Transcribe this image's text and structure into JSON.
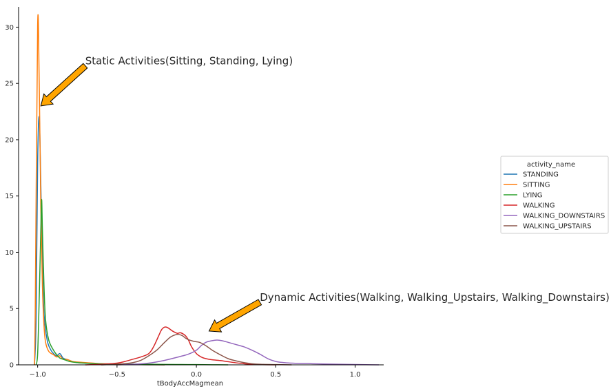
{
  "chart_data": {
    "type": "line",
    "xlabel": "tBodyAccMagmean",
    "ylabel": "",
    "xlim": [
      -1.12,
      1.18
    ],
    "ylim": [
      0,
      31.8
    ],
    "xticks": [
      -1.0,
      -0.5,
      0.0,
      0.5,
      1.0
    ],
    "xtick_labels": [
      "−1.0",
      "−0.5",
      "0.0",
      "0.5",
      "1.0"
    ],
    "yticks": [
      0,
      5,
      10,
      15,
      20,
      25,
      30
    ],
    "ytick_labels": [
      "0",
      "5",
      "10",
      "15",
      "20",
      "25",
      "30"
    ],
    "grid": false,
    "legend": {
      "title": "activity_name",
      "placement": "center-right"
    },
    "series": [
      {
        "name": "STANDING",
        "color": "#1f77b4",
        "points": [
          [
            -1.02,
            0
          ],
          [
            -1.01,
            4
          ],
          [
            -1.0,
            18
          ],
          [
            -0.99,
            22
          ],
          [
            -0.98,
            16
          ],
          [
            -0.97,
            9
          ],
          [
            -0.96,
            4.5
          ],
          [
            -0.94,
            2.2
          ],
          [
            -0.92,
            1.4
          ],
          [
            -0.9,
            1.0
          ],
          [
            -0.88,
            0.8
          ],
          [
            -0.86,
            1.0
          ],
          [
            -0.84,
            0.6
          ],
          [
            -0.82,
            0.5
          ],
          [
            -0.8,
            0.4
          ],
          [
            -0.78,
            0.3
          ],
          [
            -0.75,
            0.2
          ],
          [
            -0.7,
            0.15
          ],
          [
            -0.65,
            0.12
          ],
          [
            -0.6,
            0.08
          ],
          [
            -0.5,
            0.04
          ],
          [
            -0.4,
            0.02
          ],
          [
            -0.3,
            0.01
          ],
          [
            -0.2,
            0
          ]
        ]
      },
      {
        "name": "SITTING",
        "color": "#ff7f0e",
        "points": [
          [
            -1.02,
            0
          ],
          [
            -1.015,
            5
          ],
          [
            -1.0,
            30.1
          ],
          [
            -0.99,
            25
          ],
          [
            -0.98,
            14
          ],
          [
            -0.97,
            7
          ],
          [
            -0.96,
            3.5
          ],
          [
            -0.95,
            2.0
          ],
          [
            -0.93,
            1.2
          ],
          [
            -0.9,
            0.9
          ],
          [
            -0.88,
            0.7
          ],
          [
            -0.86,
            0.8
          ],
          [
            -0.84,
            0.5
          ],
          [
            -0.82,
            0.5
          ],
          [
            -0.8,
            0.4
          ],
          [
            -0.78,
            0.3
          ],
          [
            -0.75,
            0.25
          ],
          [
            -0.7,
            0.2
          ],
          [
            -0.65,
            0.15
          ],
          [
            -0.6,
            0.1
          ],
          [
            -0.55,
            0.08
          ],
          [
            -0.5,
            0.05
          ],
          [
            -0.4,
            0.02
          ],
          [
            -0.3,
            0.01
          ],
          [
            -0.2,
            0
          ]
        ]
      },
      {
        "name": "LYING",
        "color": "#2ca02c",
        "points": [
          [
            -1.01,
            0
          ],
          [
            -1.0,
            1
          ],
          [
            -0.99,
            6
          ],
          [
            -0.98,
            12
          ],
          [
            -0.975,
            14.7
          ],
          [
            -0.97,
            12
          ],
          [
            -0.96,
            7
          ],
          [
            -0.95,
            4
          ],
          [
            -0.93,
            2.2
          ],
          [
            -0.9,
            1.3
          ],
          [
            -0.88,
            0.9
          ],
          [
            -0.86,
            0.6
          ],
          [
            -0.84,
            0.5
          ],
          [
            -0.82,
            0.4
          ],
          [
            -0.8,
            0.3
          ],
          [
            -0.75,
            0.2
          ],
          [
            -0.7,
            0.15
          ],
          [
            -0.6,
            0.1
          ],
          [
            -0.5,
            0.08
          ],
          [
            -0.4,
            0.06
          ],
          [
            -0.3,
            0.05
          ],
          [
            -0.2,
            0.04
          ],
          [
            -0.1,
            0.03
          ],
          [
            0.0,
            0.02
          ],
          [
            0.1,
            0.01
          ],
          [
            0.2,
            0
          ]
        ]
      },
      {
        "name": "WALKING",
        "color": "#d62728",
        "points": [
          [
            -0.7,
            0
          ],
          [
            -0.6,
            0.05
          ],
          [
            -0.5,
            0.15
          ],
          [
            -0.45,
            0.3
          ],
          [
            -0.4,
            0.5
          ],
          [
            -0.35,
            0.7
          ],
          [
            -0.3,
            1.0
          ],
          [
            -0.27,
            1.6
          ],
          [
            -0.24,
            2.5
          ],
          [
            -0.22,
            3.1
          ],
          [
            -0.2,
            3.35
          ],
          [
            -0.18,
            3.3
          ],
          [
            -0.15,
            3.0
          ],
          [
            -0.12,
            2.8
          ],
          [
            -0.1,
            2.85
          ],
          [
            -0.07,
            2.6
          ],
          [
            -0.05,
            2.2
          ],
          [
            -0.03,
            1.6
          ],
          [
            0.0,
            1.0
          ],
          [
            0.03,
            0.7
          ],
          [
            0.06,
            0.55
          ],
          [
            0.1,
            0.45
          ],
          [
            0.15,
            0.38
          ],
          [
            0.2,
            0.28
          ],
          [
            0.25,
            0.18
          ],
          [
            0.3,
            0.1
          ],
          [
            0.35,
            0.05
          ],
          [
            0.4,
            0.02
          ],
          [
            0.5,
            0
          ]
        ]
      },
      {
        "name": "WALKING_DOWNSTAIRS",
        "color": "#9467bd",
        "points": [
          [
            -0.5,
            0
          ],
          [
            -0.4,
            0.05
          ],
          [
            -0.3,
            0.15
          ],
          [
            -0.2,
            0.4
          ],
          [
            -0.1,
            0.75
          ],
          [
            -0.05,
            0.95
          ],
          [
            0.0,
            1.3
          ],
          [
            0.03,
            1.7
          ],
          [
            0.06,
            2.0
          ],
          [
            0.1,
            2.15
          ],
          [
            0.13,
            2.2
          ],
          [
            0.16,
            2.15
          ],
          [
            0.2,
            2.0
          ],
          [
            0.25,
            1.8
          ],
          [
            0.3,
            1.6
          ],
          [
            0.35,
            1.3
          ],
          [
            0.4,
            0.95
          ],
          [
            0.45,
            0.55
          ],
          [
            0.5,
            0.3
          ],
          [
            0.55,
            0.2
          ],
          [
            0.6,
            0.15
          ],
          [
            0.65,
            0.12
          ],
          [
            0.7,
            0.12
          ],
          [
            0.73,
            0.1
          ],
          [
            0.8,
            0.08
          ],
          [
            0.9,
            0.05
          ],
          [
            1.0,
            0.03
          ],
          [
            1.1,
            0.01
          ],
          [
            1.15,
            0
          ]
        ]
      },
      {
        "name": "WALKING_UPSTAIRS",
        "color": "#8c564b",
        "points": [
          [
            -0.6,
            0
          ],
          [
            -0.5,
            0.05
          ],
          [
            -0.4,
            0.2
          ],
          [
            -0.35,
            0.4
          ],
          [
            -0.3,
            0.8
          ],
          [
            -0.25,
            1.3
          ],
          [
            -0.2,
            2.0
          ],
          [
            -0.16,
            2.5
          ],
          [
            -0.12,
            2.7
          ],
          [
            -0.09,
            2.6
          ],
          [
            -0.06,
            2.3
          ],
          [
            -0.02,
            2.1
          ],
          [
            0.02,
            2.0
          ],
          [
            0.06,
            1.7
          ],
          [
            0.1,
            1.3
          ],
          [
            0.15,
            0.9
          ],
          [
            0.2,
            0.55
          ],
          [
            0.25,
            0.35
          ],
          [
            0.3,
            0.2
          ],
          [
            0.35,
            0.1
          ],
          [
            0.4,
            0.05
          ],
          [
            0.5,
            0.02
          ],
          [
            0.6,
            0
          ]
        ]
      }
    ],
    "annotations": [
      {
        "text": "Static Activities(Sitting, Standing, Lying)",
        "xy": [
          -0.98,
          23
        ],
        "xytext": [
          -0.7,
          27
        ]
      },
      {
        "text": "Dynamic Activities(Walking, Walking_Upstairs, Walking_Downstairs)",
        "xy": [
          0.08,
          3
        ],
        "xytext": [
          0.4,
          6
        ]
      }
    ],
    "arrow_color": "#ffa500"
  }
}
